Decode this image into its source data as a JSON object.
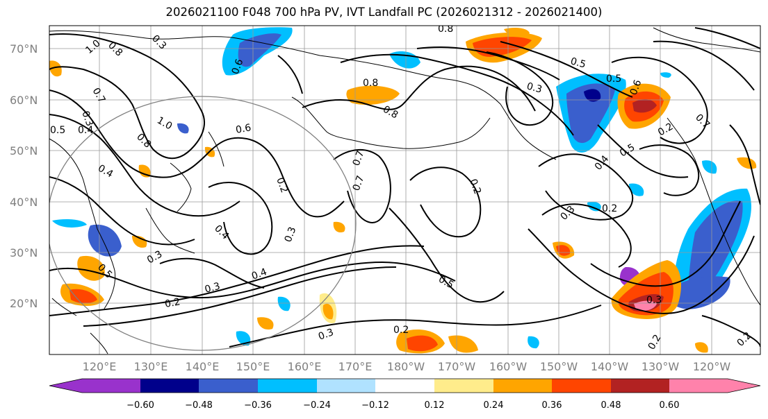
{
  "title": "2026021100 F048 700 hPa PV, IVT Landfall PC (2026021312 - 2026021400)",
  "lat_labels": [
    "70°N",
    "60°N",
    "50°N",
    "40°N",
    "30°N",
    "20°N"
  ],
  "lon_labels": [
    "120°E",
    "130°E",
    "140°E",
    "150°E",
    "160°E",
    "170°E",
    "180°W",
    "170°W",
    "160°W",
    "150°W",
    "140°W",
    "130°W",
    "120°W"
  ],
  "colorbar": {
    "ticks": [
      "−0.60",
      "−0.48",
      "−0.36",
      "−0.24",
      "−0.12",
      "0.12",
      "0.24",
      "0.36",
      "0.48",
      "0.60"
    ],
    "colors": [
      "#9932cc",
      "#00008b",
      "#3a5fcd",
      "#00bfff",
      "#b0e2ff",
      "#ffffff",
      "#ffec8b",
      "#ffa500",
      "#ff4500",
      "#b22222",
      "#ff82ab"
    ]
  },
  "contour_labels": [
    "0.8",
    "0.3",
    "1.0",
    "0.7",
    "0.3",
    "0.6",
    "0.8",
    "1.0",
    "0.5",
    "0.4",
    "0.8",
    "0.4",
    "0.6",
    "0.7",
    "0.8",
    "0.2",
    "0.3",
    "0.5",
    "0.5",
    "0.6",
    "0.3",
    "0.2",
    "0.5",
    "0.4",
    "0.2",
    "0.7",
    "0.2",
    "0.3",
    "0.4",
    "0.3",
    "0.2",
    "0.3",
    "0.4",
    "0.3",
    "0.5",
    "0.5",
    "0.2",
    "0.3",
    "0.2",
    "0.2",
    "0.7",
    "0.8"
  ]
}
